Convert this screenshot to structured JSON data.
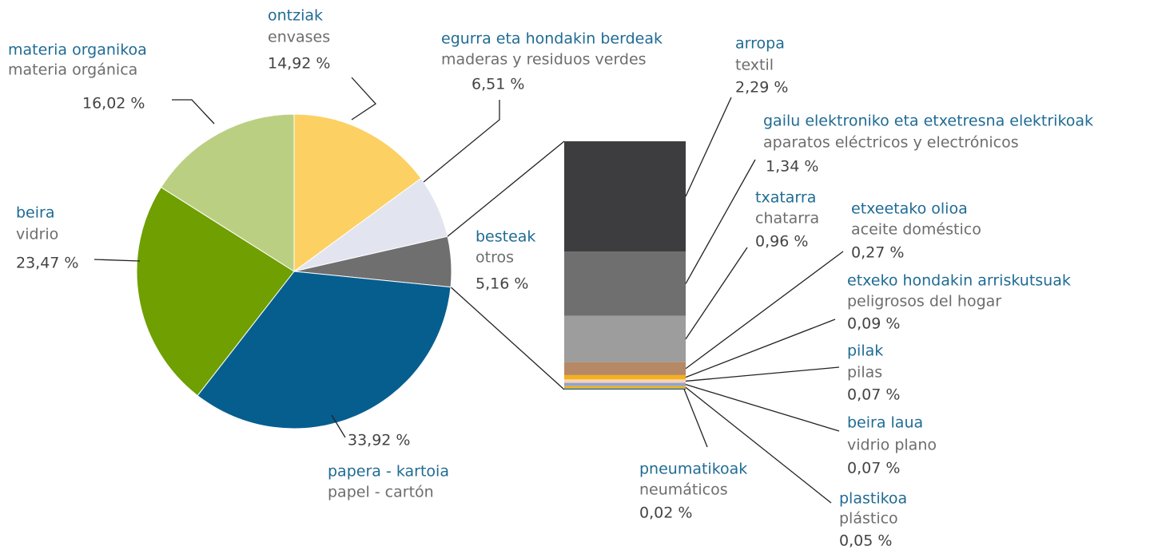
{
  "chart_data": [
    {
      "type": "pie",
      "categories": [
        "ontziak",
        "egurra eta hondakin berdeak",
        "besteak",
        "papera - kartoia",
        "beira",
        "materia organikoa"
      ],
      "subtitles": [
        "envases",
        "maderas y residuos verdes",
        "otros",
        "papel - cartón",
        "vidrio",
        "materia orgánica"
      ],
      "values": [
        14.92,
        6.51,
        5.16,
        33.92,
        23.47,
        16.02
      ],
      "value_labels": [
        "14,92 %",
        "6,51 %",
        "5,16 %",
        "33,92 %",
        "23,47 %",
        "16,02 %"
      ],
      "colors": [
        "#fcd062",
        "#e2e5ef",
        "#6f6f6f",
        "#065e8f",
        "#6f9f00",
        "#bbcf82"
      ]
    },
    {
      "type": "bar",
      "stacked": true,
      "categories": [
        "arropa",
        "gailu elektroniko eta etxetresna elektrikoak",
        "txatarra",
        "etxeetako olioa",
        "etxeko hondakin arriskutsuak",
        "pilak",
        "beira laua",
        "plastikoa",
        "pneumatikoak"
      ],
      "subtitles": [
        "textil",
        "aparatos eléctricos y electrónicos",
        "chatarra",
        "aceite doméstico",
        "peligrosos del hogar",
        "pilas",
        "vidrio plano",
        "plástico",
        "neumáticos"
      ],
      "values": [
        2.29,
        1.34,
        0.96,
        0.27,
        0.09,
        0.07,
        0.07,
        0.05,
        0.02
      ],
      "value_labels": [
        "2,29 %",
        "1,34 %",
        "0,96 %",
        "0,27 %",
        "0,09 %",
        "0,07 %",
        "0,07 %",
        "0,05 %",
        "0,02 %"
      ],
      "colors": [
        "#3d3d3f",
        "#6f6f70",
        "#9c9d9c",
        "#b58866",
        "#f4b11a",
        "#f9d3b4",
        "#8fa4cc",
        "#f2b11a",
        "#0b5e8e"
      ]
    }
  ]
}
